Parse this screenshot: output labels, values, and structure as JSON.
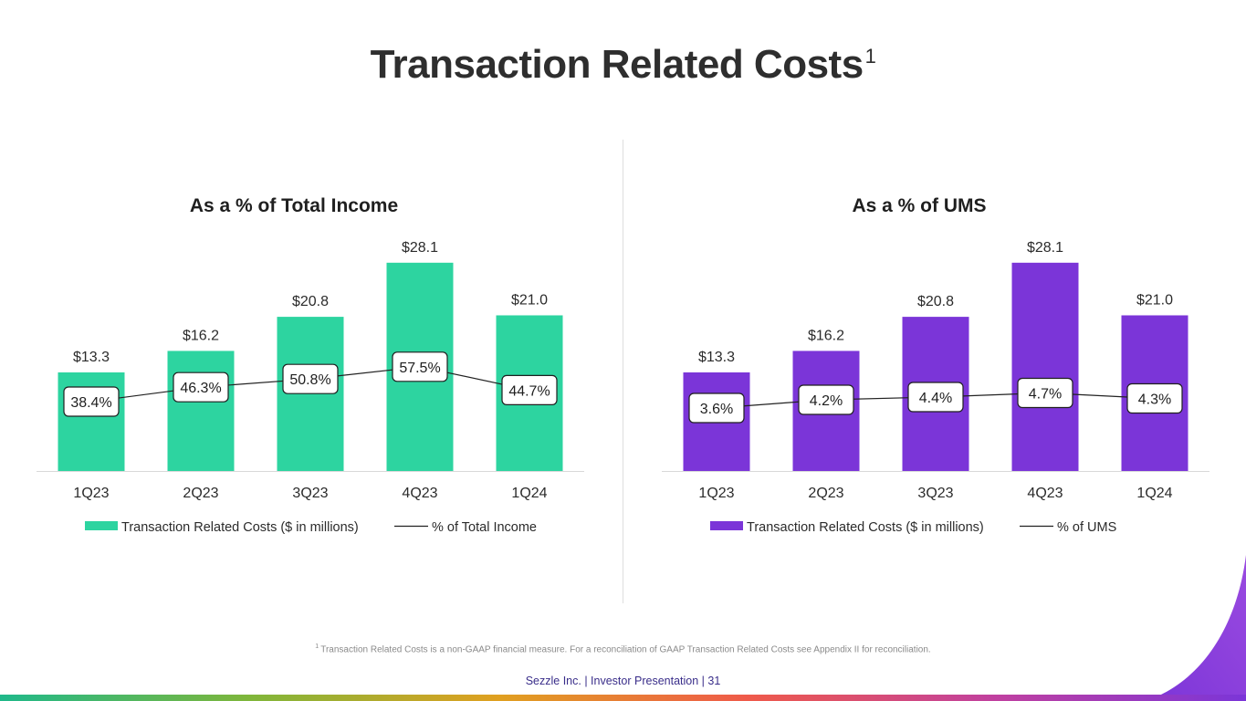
{
  "title": "Transaction Related Costs",
  "title_sup": "1",
  "colors": {
    "green": "#2dd4a0",
    "purple": "#7b35d8",
    "axis": "#d9d9d9",
    "line": "#222222"
  },
  "chart_data": [
    {
      "type": "bar",
      "title": "As a % of Total Income",
      "categories": [
        "1Q23",
        "2Q23",
        "3Q23",
        "4Q23",
        "1Q24"
      ],
      "values": [
        13.3,
        16.2,
        20.8,
        28.1,
        21.0
      ],
      "value_labels": [
        "$13.3",
        "$16.2",
        "$20.8",
        "$28.1",
        "$21.0"
      ],
      "line_series": {
        "name": "% of Total Income",
        "values": [
          38.4,
          46.3,
          50.8,
          57.5,
          44.7
        ],
        "labels": [
          "38.4%",
          "46.3%",
          "50.8%",
          "57.5%",
          "44.7%"
        ]
      },
      "legend": [
        "Transaction Related Costs ($ in millions)",
        "% of Total Income"
      ],
      "color": "#2dd4a0"
    },
    {
      "type": "bar",
      "title": "As a % of UMS",
      "categories": [
        "1Q23",
        "2Q23",
        "3Q23",
        "4Q23",
        "1Q24"
      ],
      "values": [
        13.3,
        16.2,
        20.8,
        28.1,
        21.0
      ],
      "value_labels": [
        "$13.3",
        "$16.2",
        "$20.8",
        "$28.1",
        "$21.0"
      ],
      "line_series": {
        "name": "% of UMS",
        "values": [
          3.6,
          4.2,
          4.4,
          4.7,
          4.3
        ],
        "labels": [
          "3.6%",
          "4.2%",
          "4.4%",
          "4.7%",
          "4.3%"
        ]
      },
      "legend": [
        "Transaction Related Costs ($ in millions)",
        "% of UMS"
      ],
      "color": "#7b35d8"
    }
  ],
  "footnote_sup": "1",
  "footnote": "Transaction Related Costs is a non-GAAP financial measure. For a reconciliation of GAAP Transaction Related Costs see Appendix II for reconciliation.",
  "footer": "Sezzle Inc. | Investor Presentation | 31"
}
